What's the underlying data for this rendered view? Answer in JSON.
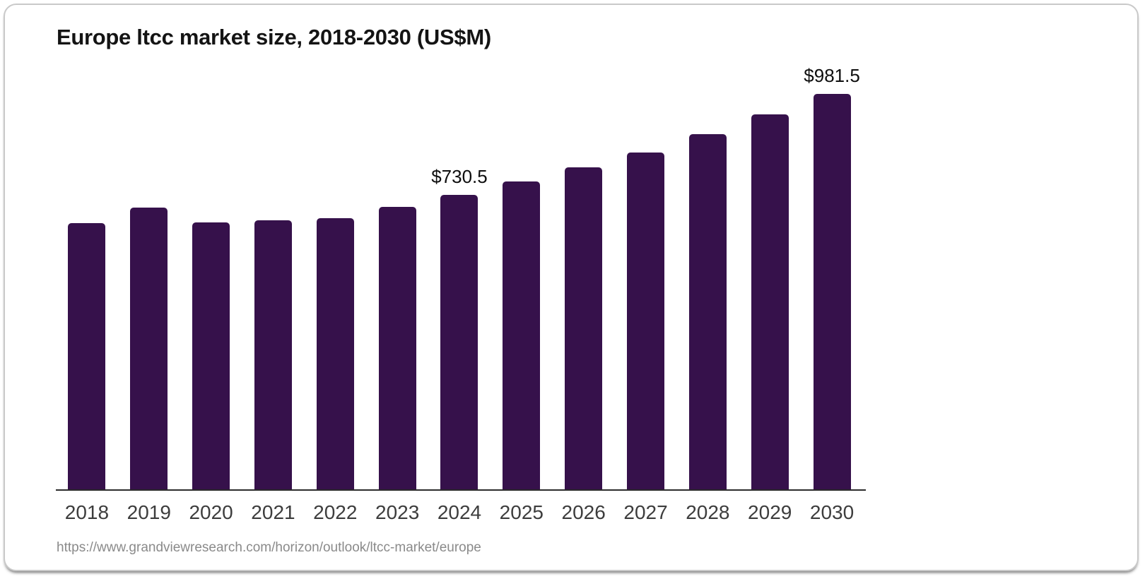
{
  "card": {
    "title": "Europe ltcc market size, 2018-2030 (US$M)",
    "source_url": "https://www.grandviewresearch.com/horizon/outlook/ltcc-market/europe"
  },
  "chart_data": {
    "type": "bar",
    "title": "Europe ltcc market size, 2018-2030 (US$M)",
    "categories": [
      "2018",
      "2019",
      "2020",
      "2021",
      "2022",
      "2023",
      "2024",
      "2025",
      "2026",
      "2027",
      "2028",
      "2029",
      "2030"
    ],
    "values": [
      662,
      700,
      663,
      669,
      674,
      702,
      730.5,
      764,
      800,
      837,
      882,
      930,
      981.5
    ],
    "data_labels": [
      "",
      "",
      "",
      "",
      "",
      "",
      "$730.5",
      "",
      "",
      "",
      "",
      "",
      "$981.5"
    ],
    "labeled_points": [
      {
        "category": "2024",
        "label": "$730.5",
        "value": 730.5
      },
      {
        "category": "2030",
        "label": "$981.5",
        "value": 981.5
      }
    ],
    "xlabel": "",
    "ylabel": "",
    "ylim": [
      0,
      1000
    ],
    "grid": false,
    "legend": false,
    "colors": {
      "bar": "#36114B",
      "value_label": "#0e0e0e",
      "tick_label": "#3d3d3d",
      "axis_line": "#2b2b2b"
    }
  }
}
